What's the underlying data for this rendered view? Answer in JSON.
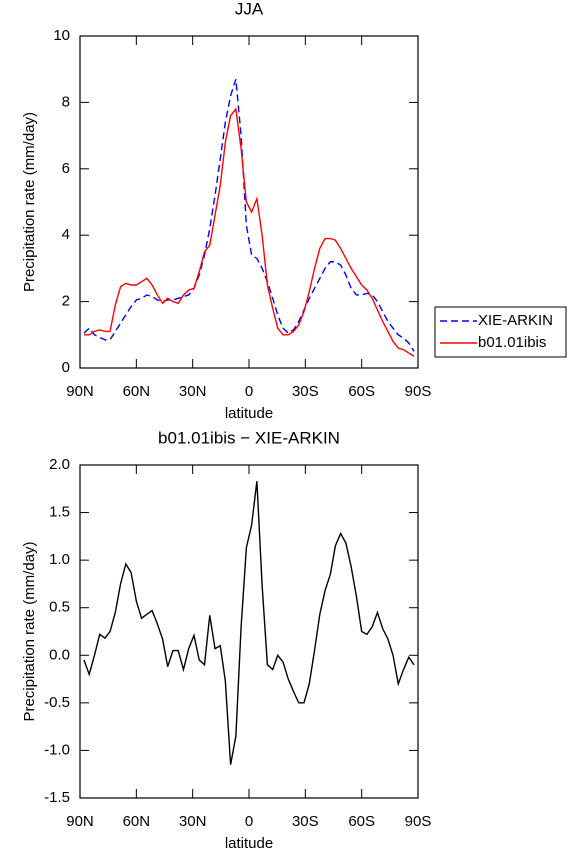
{
  "chart_data": [
    {
      "type": "line",
      "title": "JJA",
      "xlabel": "latitude",
      "ylabel": "Precipitation rate (mm/day)",
      "x": [
        87.9,
        85.1,
        82.3,
        79.5,
        76.7,
        74.0,
        71.2,
        68.4,
        65.6,
        62.8,
        60.0,
        57.2,
        54.4,
        51.6,
        48.8,
        46.0,
        43.3,
        40.5,
        37.7,
        34.9,
        32.1,
        29.3,
        26.5,
        23.7,
        20.9,
        18.1,
        15.3,
        12.6,
        9.8,
        7.0,
        4.2,
        1.4,
        -1.4,
        -4.2,
        -7.0,
        -9.8,
        -12.6,
        -15.3,
        -18.1,
        -20.9,
        -23.7,
        -26.5,
        -29.3,
        -32.1,
        -34.9,
        -37.7,
        -40.5,
        -43.3,
        -46.0,
        -48.8,
        -51.6,
        -54.4,
        -57.2,
        -60.0,
        -62.8,
        -65.6,
        -68.4,
        -71.2,
        -74.0,
        -76.7,
        -79.5,
        -82.3,
        -85.1,
        -87.9
      ],
      "series": [
        {
          "name": "XIE-ARKIN",
          "color": "#0000ff",
          "dashed": true,
          "values": [
            1.05,
            1.2,
            1.0,
            0.92,
            0.85,
            0.85,
            1.1,
            1.35,
            1.6,
            1.85,
            2.05,
            2.1,
            2.2,
            2.15,
            2.05,
            2.0,
            2.05,
            2.05,
            2.1,
            2.15,
            2.2,
            2.4,
            2.8,
            3.4,
            4.2,
            5.2,
            6.3,
            7.4,
            8.2,
            8.7,
            7.0,
            4.3,
            3.4,
            3.3,
            3.0,
            2.6,
            2.1,
            1.6,
            1.2,
            1.05,
            1.15,
            1.4,
            1.75,
            2.1,
            2.4,
            2.7,
            3.0,
            3.2,
            3.2,
            3.1,
            2.8,
            2.4,
            2.2,
            2.2,
            2.25,
            2.2,
            2.0,
            1.7,
            1.4,
            1.2,
            1.0,
            0.9,
            0.75,
            0.5
          ]
        },
        {
          "name": "b01.01ibis",
          "color": "#ff0000",
          "dashed": false,
          "values": [
            1.0,
            1.0,
            1.1,
            1.15,
            1.1,
            1.1,
            1.9,
            2.45,
            2.55,
            2.5,
            2.5,
            2.6,
            2.7,
            2.5,
            2.2,
            1.95,
            2.1,
            2.0,
            1.95,
            2.2,
            2.35,
            2.4,
            2.9,
            3.5,
            3.7,
            4.6,
            5.5,
            6.8,
            7.6,
            7.8,
            6.6,
            5.0,
            4.7,
            5.1,
            4.0,
            2.5,
            1.8,
            1.2,
            1.0,
            1.0,
            1.1,
            1.3,
            1.7,
            2.3,
            3.0,
            3.6,
            3.9,
            3.9,
            3.85,
            3.6,
            3.3,
            3.0,
            2.75,
            2.5,
            2.35,
            2.1,
            1.75,
            1.4,
            1.1,
            0.8,
            0.6,
            0.55,
            0.45,
            0.35
          ]
        }
      ],
      "xlim": [
        90,
        -90
      ],
      "xticks": [
        {
          "value": 90,
          "label": "90N"
        },
        {
          "value": 60,
          "label": "60N"
        },
        {
          "value": 30,
          "label": "30N"
        },
        0,
        {
          "value": -30,
          "label": "30S"
        },
        {
          "value": -60,
          "label": "60S"
        },
        {
          "value": -90,
          "label": "90S"
        }
      ],
      "ylim": [
        0,
        10
      ],
      "yticks": [
        0,
        2,
        4,
        6,
        8,
        10
      ],
      "legend": "right"
    },
    {
      "type": "line",
      "title": "b01.01ibis − XIE-ARKIN",
      "xlabel": "latitude",
      "ylabel": "Precipitation rate (mm/day)",
      "x": [
        87.9,
        85.1,
        82.3,
        79.5,
        76.7,
        74.0,
        71.2,
        68.4,
        65.6,
        62.8,
        60.0,
        57.2,
        54.4,
        51.6,
        48.8,
        46.0,
        43.3,
        40.5,
        37.7,
        34.9,
        32.1,
        29.3,
        26.5,
        23.7,
        20.9,
        18.1,
        15.3,
        12.6,
        9.8,
        7.0,
        4.2,
        1.4,
        -1.4,
        -4.2,
        -7.0,
        -9.8,
        -12.6,
        -15.3,
        -18.1,
        -20.9,
        -23.7,
        -26.5,
        -29.3,
        -32.1,
        -34.9,
        -37.7,
        -40.5,
        -43.3,
        -46.0,
        -48.8,
        -51.6,
        -54.4,
        -57.2,
        -60.0,
        -62.8,
        -65.6,
        -68.4,
        -71.2,
        -74.0,
        -76.7,
        -79.5,
        -82.3,
        -85.1,
        -87.9
      ],
      "color": "#000000",
      "values": [
        -0.05,
        -0.2,
        0.0,
        0.22,
        0.18,
        0.25,
        0.45,
        0.75,
        0.96,
        0.87,
        0.57,
        0.39,
        0.43,
        0.47,
        0.33,
        0.17,
        -0.12,
        0.05,
        0.05,
        -0.15,
        0.07,
        0.21,
        -0.05,
        -0.1,
        0.42,
        0.07,
        0.1,
        -0.27,
        -1.15,
        -0.85,
        0.3,
        1.13,
        1.37,
        1.83,
        0.73,
        -0.1,
        -0.15,
        0.0,
        -0.07,
        -0.25,
        -0.38,
        -0.5,
        -0.5,
        -0.3,
        0.05,
        0.43,
        0.68,
        0.85,
        1.15,
        1.28,
        1.18,
        0.93,
        0.62,
        0.25,
        0.22,
        0.3,
        0.45,
        0.28,
        0.17,
        0.0,
        -0.3,
        -0.15,
        -0.02,
        -0.1
      ],
      "xlim": [
        90,
        -90
      ],
      "xticks": [
        {
          "value": 90,
          "label": "90N"
        },
        {
          "value": 60,
          "label": "60N"
        },
        {
          "value": 30,
          "label": "30N"
        },
        0,
        {
          "value": -30,
          "label": "30S"
        },
        {
          "value": -60,
          "label": "60S"
        },
        {
          "value": -90,
          "label": "90S"
        }
      ],
      "ylim": [
        -1.5,
        2.0
      ],
      "yticks": [
        {
          "value": 2.0,
          "label": "2.0"
        },
        1.5,
        {
          "value": 1.0,
          "label": "1.0"
        },
        0.5,
        {
          "value": 0.0,
          "label": "0.0"
        },
        -0.5,
        {
          "value": -1.0,
          "label": "-1.0"
        },
        -1.5
      ]
    }
  ]
}
